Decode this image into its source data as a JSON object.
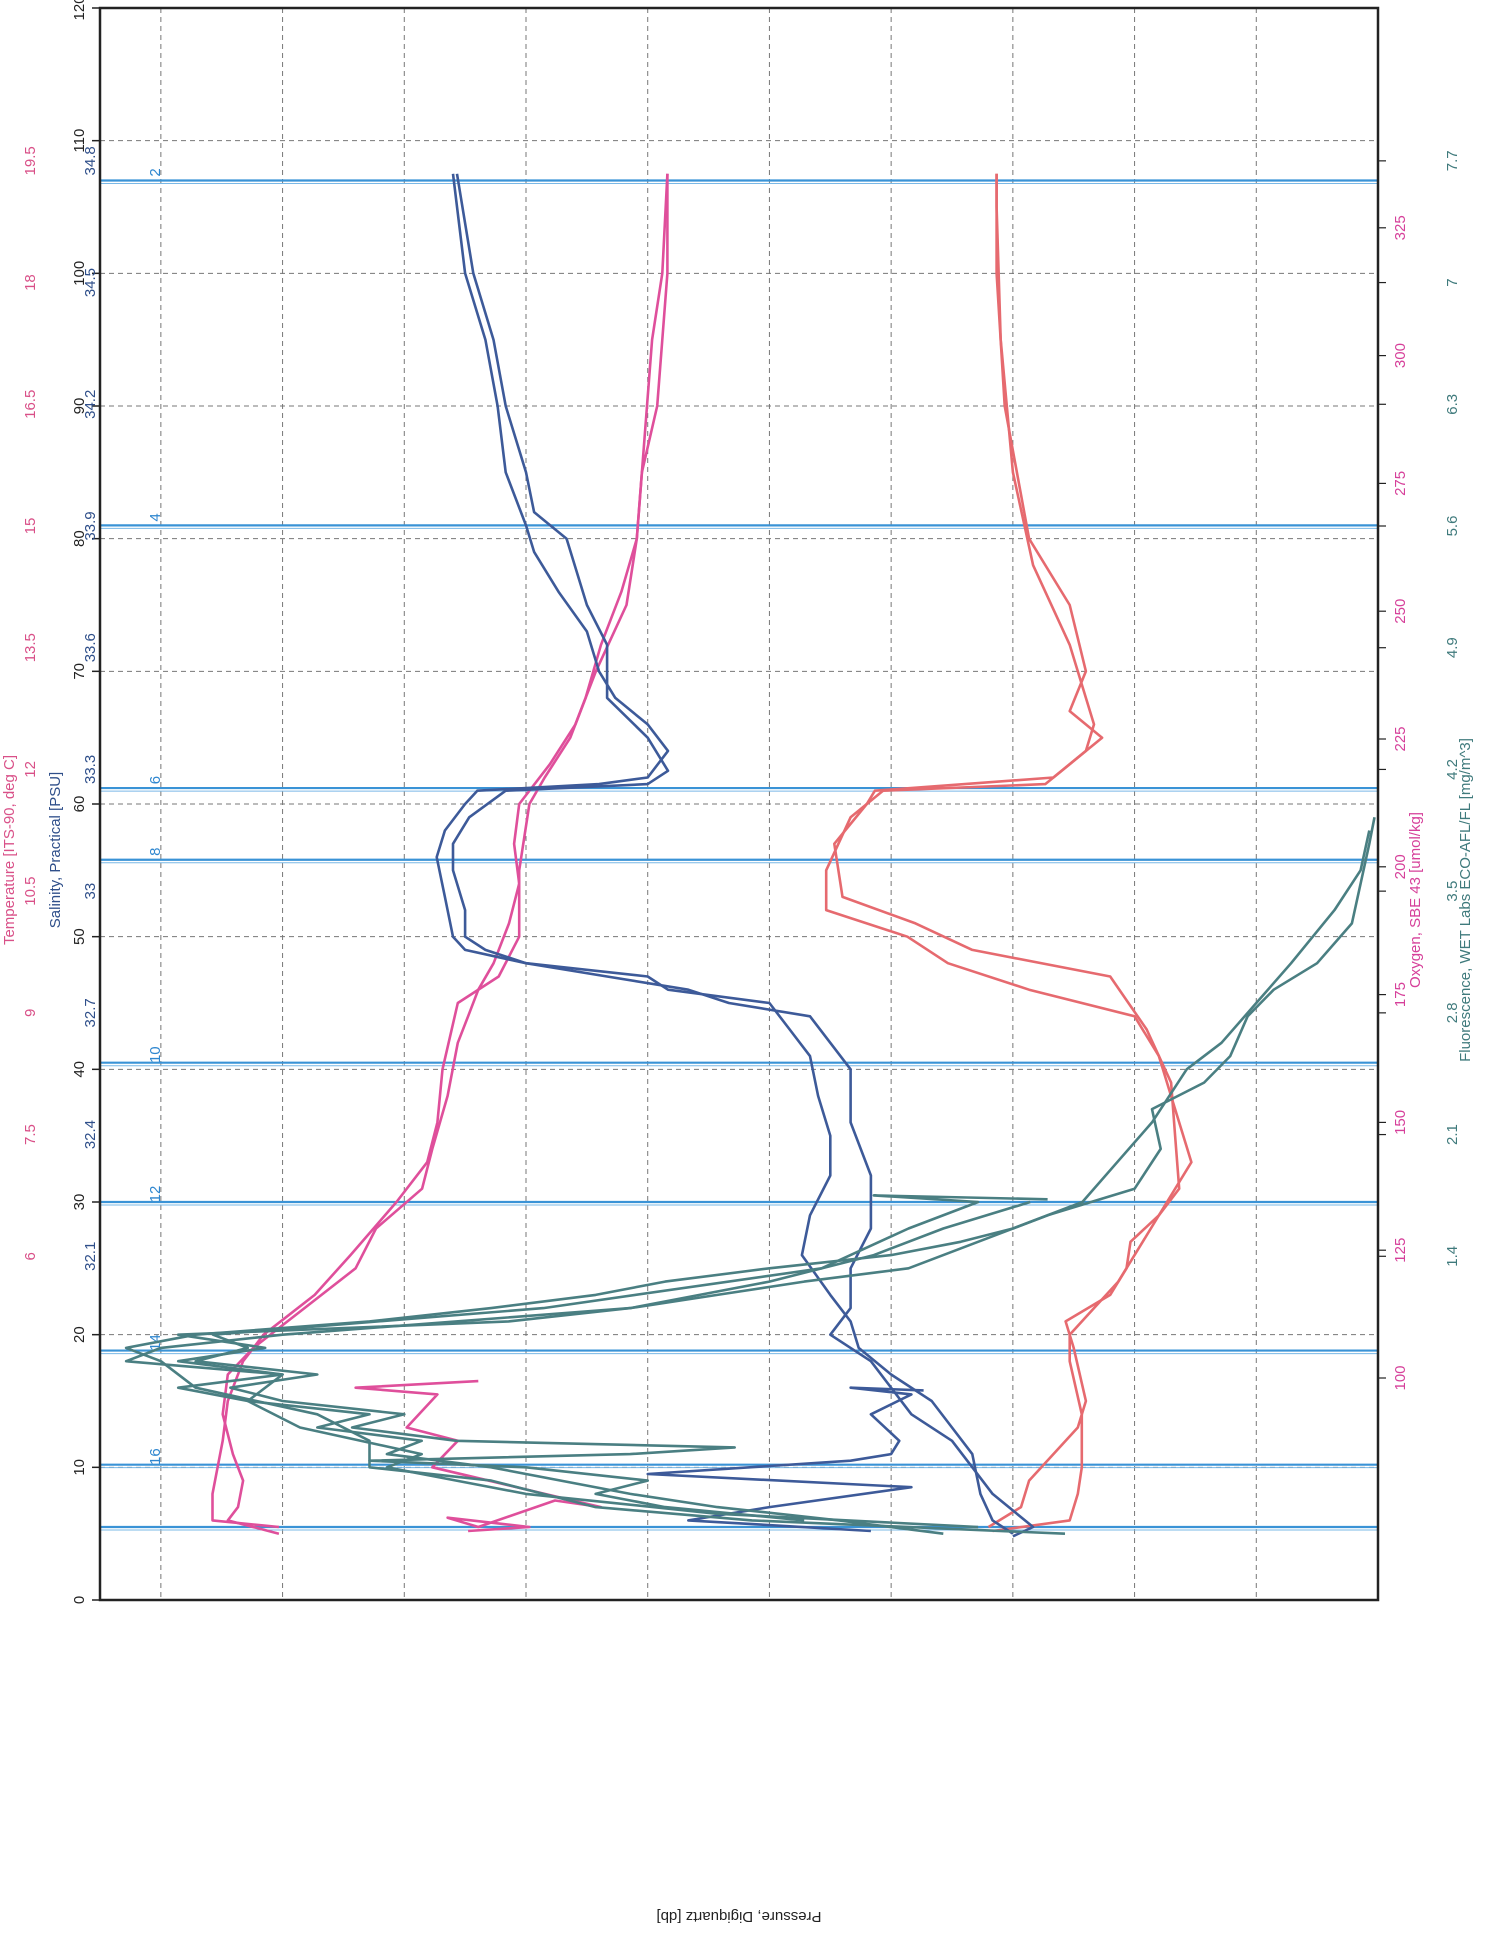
{
  "chart_data": {
    "type": "line",
    "orientation": "rotated-90",
    "grid": true,
    "x_axis": {
      "label": "Pressure, Digiquartz [db]",
      "range": [
        0,
        120
      ],
      "ticks": [
        0,
        10,
        20,
        30,
        40,
        50,
        60,
        70,
        80,
        90,
        100,
        110,
        120
      ]
    },
    "y_axes": [
      {
        "id": "temperature",
        "label": "Temperature [ITS-90, deg C]",
        "color": "#d95088",
        "range": [
          4.5,
          20.25
        ],
        "ticks": [
          19.5,
          18.0,
          16.5,
          15.0,
          13.5,
          12.0,
          10.5,
          9.0,
          7.5,
          6.0
        ]
      },
      {
        "id": "salinity",
        "label": "Salinity, Practical [PSU]",
        "color": "#2f4f8a",
        "range": [
          31.8,
          34.95
        ],
        "ticks": [
          34.8,
          34.5,
          34.2,
          33.9,
          33.6,
          33.3,
          33.0,
          32.7,
          32.4,
          32.1
        ]
      },
      {
        "id": "oxygen",
        "label": "Oxygen, SBE 43 [umol/kg]",
        "color": "#d6409a",
        "range": [
          100,
          350
        ],
        "ticks": [
          325,
          300,
          275,
          250,
          225,
          200,
          175,
          150,
          125,
          100
        ]
      },
      {
        "id": "fluorescence",
        "label": "Fluorescence, WET Labs ECO-AFL/FL [mg/m^3]",
        "color": "#3f7a7c",
        "range": [
          0.7,
          8.05
        ],
        "ticks": [
          7.7,
          7.0,
          6.3,
          5.6,
          4.9,
          4.2,
          3.5,
          2.8,
          2.1,
          1.4
        ]
      }
    ],
    "bottle_markers": [
      {
        "pressure": 5.5,
        "label": ""
      },
      {
        "pressure": 10.2,
        "label": "16"
      },
      {
        "pressure": 18.8,
        "label": "14"
      },
      {
        "pressure": 30.0,
        "label": "12"
      },
      {
        "pressure": 40.5,
        "label": "10"
      },
      {
        "pressure": 55.8,
        "label": "8"
      },
      {
        "pressure": 61.2,
        "label": "6"
      },
      {
        "pressure": 81.0,
        "label": "4"
      },
      {
        "pressure": 107.0,
        "label": "2"
      }
    ],
    "series": [
      {
        "axis": "temperature",
        "color": "#e66a6f",
        "x": [
          5.2,
          6,
          8,
          10,
          14,
          18,
          20,
          22,
          24,
          27,
          30,
          33,
          37,
          41,
          44,
          46,
          48,
          50,
          52,
          55,
          59,
          61,
          61.5,
          63,
          65,
          67,
          70,
          75,
          80,
          90,
          100,
          107.5
        ],
        "y": [
          9.25,
          8.3,
          8.2,
          8.15,
          8.15,
          8.3,
          8.3,
          8.0,
          7.7,
          7.4,
          7.1,
          6.8,
          7.0,
          7.2,
          7.5,
          8.8,
          9.8,
          10.3,
          11.3,
          11.3,
          11.0,
          10.6,
          8.6,
          8.3,
          7.9,
          8.3,
          8.1,
          8.3,
          8.8,
          9.1,
          9.2,
          9.2
        ]
      },
      {
        "axis": "temperature",
        "color": "#e66a6f",
        "x": [
          5.5,
          7,
          9,
          11,
          13,
          15,
          19,
          21,
          23,
          25,
          27,
          29,
          31,
          35,
          39,
          43,
          47,
          49,
          51,
          53,
          57,
          60,
          61,
          62,
          64,
          66,
          68,
          72,
          78,
          85,
          95,
          105,
          107.5
        ],
        "y": [
          9.3,
          8.9,
          8.8,
          8.5,
          8.2,
          8.1,
          8.25,
          8.35,
          7.8,
          7.6,
          7.55,
          7.2,
          6.95,
          7.0,
          7.05,
          7.35,
          7.8,
          9.5,
          10.2,
          11.1,
          11.2,
          10.8,
          10.7,
          8.5,
          8.1,
          8.0,
          8.1,
          8.3,
          8.75,
          9.0,
          9.15,
          9.2,
          9.2
        ]
      },
      {
        "axis": "oxygen",
        "color": "#df4f9b",
        "x": [
          5.5,
          6,
          8,
          10,
          12,
          15,
          18,
          20,
          23,
          26,
          30,
          33,
          36,
          40,
          45,
          47,
          50,
          55,
          60,
          62,
          65,
          68,
          72,
          76,
          80,
          85,
          90,
          95,
          100,
          107.5
        ],
        "y": [
          315,
          328,
          328,
          327,
          326,
          325,
          322,
          318,
          308,
          301,
          292,
          286,
          284,
          283,
          280,
          272,
          268,
          268,
          266,
          263,
          258,
          255,
          252,
          248,
          245,
          244,
          243,
          242,
          240,
          239
        ]
      },
      {
        "axis": "oxygen",
        "color": "#df4f9b",
        "x": [
          5,
          6,
          7,
          9,
          11,
          14,
          17,
          19,
          22,
          25,
          28,
          31,
          34,
          38,
          42,
          44,
          46,
          48,
          51,
          54,
          57,
          60,
          63,
          66,
          70,
          75,
          80,
          85,
          90,
          95,
          100,
          107.5
        ],
        "y": [
          315,
          325,
          323,
          322,
          324,
          326,
          325,
          320,
          310,
          300,
          296,
          287,
          285,
          282,
          280,
          278,
          276,
          273,
          270,
          268,
          269,
          268,
          262,
          257,
          253,
          247,
          245,
          244,
          241,
          240,
          239,
          239
        ]
      },
      {
        "axis": "oxygen",
        "color": "#df4f9b",
        "x": [
          5.2,
          5.5,
          6.2,
          5.5,
          7.5,
          7,
          10,
          12,
          13,
          15.5,
          16,
          16.5
        ],
        "y": [
          278,
          266,
          282,
          276,
          261,
          252,
          285,
          280,
          290,
          284,
          300,
          276
        ]
      },
      {
        "axis": "salinity",
        "color": "#3d5a99",
        "x": [
          4.8,
          5.5,
          8,
          10,
          12,
          14,
          16,
          18,
          20,
          22,
          25,
          28,
          32,
          36,
          40,
          42,
          44,
          45,
          46,
          47,
          48,
          49,
          50,
          52,
          55,
          57,
          59,
          61,
          61.5,
          62.5,
          65,
          68,
          72,
          75,
          80,
          82,
          85,
          90,
          95,
          100,
          107.5
        ],
        "y": [
          32.7,
          32.65,
          32.75,
          32.8,
          32.85,
          32.95,
          33.0,
          33.05,
          33.15,
          33.1,
          33.1,
          33.05,
          33.05,
          33.1,
          33.1,
          33.15,
          33.2,
          33.4,
          33.5,
          33.7,
          33.9,
          34.0,
          34.05,
          34.05,
          34.08,
          34.08,
          34.04,
          33.95,
          33.6,
          33.55,
          33.6,
          33.7,
          33.7,
          33.75,
          33.8,
          33.88,
          33.9,
          33.95,
          33.98,
          34.03,
          34.07
        ]
      },
      {
        "axis": "salinity",
        "color": "#3d5a99",
        "x": [
          5,
          6,
          8,
          11,
          13,
          15,
          17,
          19,
          21,
          23,
          26,
          29,
          32,
          35,
          38,
          41,
          43,
          45,
          46,
          47,
          48,
          49,
          50,
          53,
          56,
          58,
          60,
          61,
          61.5,
          62,
          64,
          66,
          68,
          70,
          73,
          76,
          79,
          81,
          85,
          90,
          95,
          100,
          107.5
        ],
        "y": [
          32.7,
          32.75,
          32.78,
          32.8,
          32.85,
          32.9,
          33.0,
          33.08,
          33.1,
          33.15,
          33.22,
          33.2,
          33.15,
          33.15,
          33.18,
          33.2,
          33.25,
          33.3,
          33.55,
          33.6,
          33.9,
          34.05,
          34.08,
          34.1,
          34.12,
          34.1,
          34.05,
          34.02,
          33.72,
          33.6,
          33.55,
          33.6,
          33.68,
          33.72,
          33.75,
          33.82,
          33.88,
          33.9,
          33.95,
          33.97,
          34.0,
          34.05,
          34.08
        ]
      },
      {
        "axis": "salinity",
        "color": "#3d5a99",
        "x": [
          5.2,
          6,
          7,
          8.5,
          9.5,
          10.5,
          11,
          12,
          14,
          15.5,
          16,
          15.8
        ],
        "y": [
          33.05,
          33.5,
          33.3,
          32.95,
          33.6,
          33.1,
          33.0,
          32.98,
          33.05,
          32.95,
          33.1,
          32.92
        ]
      },
      {
        "axis": "fluorescence",
        "color": "#4a7f82",
        "x": [
          5,
          6,
          7,
          8,
          9,
          10,
          12,
          14,
          16,
          18,
          19,
          20,
          21,
          22,
          23,
          24,
          25,
          26,
          27,
          28,
          30,
          33,
          36,
          40,
          42,
          45,
          48,
          52,
          55,
          58
        ],
        "y": [
          2.5,
          4.3,
          5.2,
          5.5,
          5.8,
          6.5,
          6.5,
          6.8,
          7.5,
          7.7,
          7.9,
          7.5,
          6.5,
          5.8,
          5.2,
          4.8,
          4.2,
          3.5,
          3.1,
          2.8,
          2.4,
          2.2,
          2.0,
          1.8,
          1.6,
          1.4,
          1.2,
          0.95,
          0.8,
          0.75
        ]
      },
      {
        "axis": "fluorescence",
        "color": "#4a7f82",
        "x": [
          5.5,
          6.5,
          8,
          9,
          10,
          11,
          13,
          15,
          17,
          18,
          19,
          20,
          21,
          22,
          23,
          24,
          25,
          27,
          29,
          31,
          34,
          37,
          39,
          41,
          44,
          46,
          48,
          51,
          54,
          57,
          59
        ],
        "y": [
          3.0,
          4.5,
          5.6,
          6.0,
          6.4,
          6.2,
          6.9,
          7.2,
          7.0,
          7.6,
          7.1,
          7.6,
          5.7,
          5.0,
          4.5,
          4.0,
          3.4,
          3.0,
          2.6,
          2.1,
          1.95,
          2.0,
          1.7,
          1.55,
          1.45,
          1.3,
          1.05,
          0.85,
          0.8,
          0.75,
          0.72
        ]
      },
      {
        "axis": "fluorescence",
        "color": "#4a7f82",
        "x": [
          5,
          6,
          7,
          8,
          10,
          11,
          12,
          13,
          14,
          15,
          16,
          17,
          18,
          19,
          20,
          21,
          22,
          24,
          26,
          28,
          30
        ],
        "y": [
          3.2,
          3.8,
          4.5,
          5.0,
          5.8,
          6.4,
          6.2,
          6.8,
          6.5,
          7.2,
          7.6,
          7.0,
          7.9,
          7.7,
          7.0,
          6.0,
          5.0,
          4.2,
          3.6,
          3.2,
          2.7
        ]
      },
      {
        "axis": "fluorescence",
        "color": "#4a7f82",
        "x": [
          6,
          7,
          8,
          9,
          10,
          10.5,
          11,
          11.5,
          12,
          13,
          14,
          15,
          16,
          17,
          18,
          19,
          20,
          22,
          25,
          28,
          30,
          30.5,
          30.2
        ],
        "y": [
          4.0,
          4.8,
          5.2,
          4.9,
          5.6,
          6.5,
          5.0,
          4.4,
          6.0,
          6.6,
          6.3,
          7.0,
          7.3,
          6.8,
          7.5,
          7.2,
          7.4,
          5.5,
          3.9,
          3.4,
          3.0,
          3.6,
          2.6
        ]
      }
    ]
  }
}
